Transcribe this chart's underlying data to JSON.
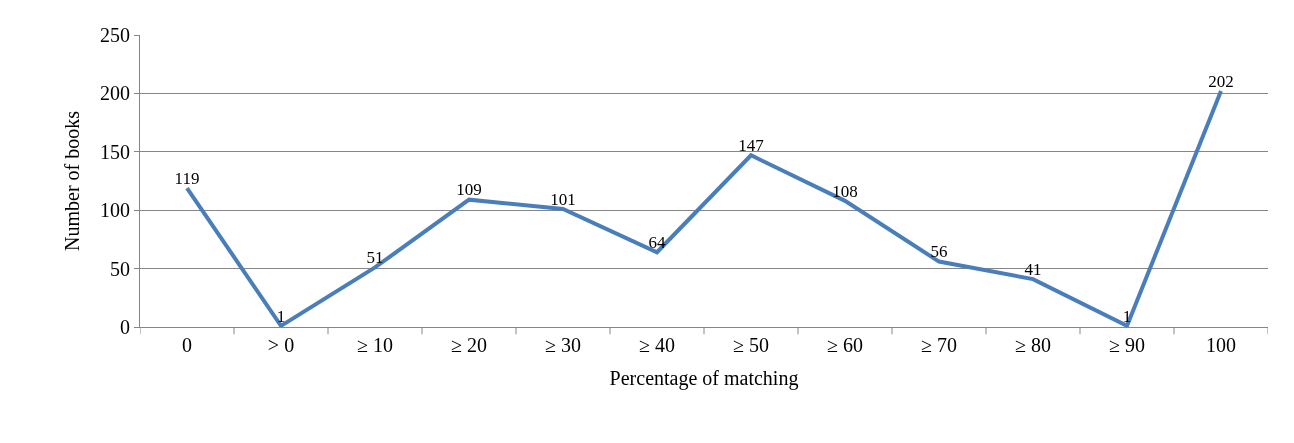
{
  "chart_data": {
    "type": "line",
    "xlabel": "Percentage of matching",
    "ylabel": "Number of books",
    "categories": [
      "0",
      "> 0",
      "≥ 10",
      "≥ 20",
      "≥ 30",
      "≥ 40",
      "≥ 50",
      "≥ 60",
      "≥ 70",
      "≥ 80",
      "≥ 90",
      "100"
    ],
    "series": [
      {
        "color": "#4a7ebb",
        "values": [
          119,
          1,
          51,
          109,
          101,
          64,
          147,
          108,
          56,
          41,
          1,
          202
        ]
      }
    ],
    "ylim": [
      0,
      250
    ],
    "yticks": [
      0,
      50,
      100,
      150,
      200,
      250
    ],
    "grid": "y",
    "data_labels": true,
    "marker": "none",
    "line_style": "solid"
  }
}
